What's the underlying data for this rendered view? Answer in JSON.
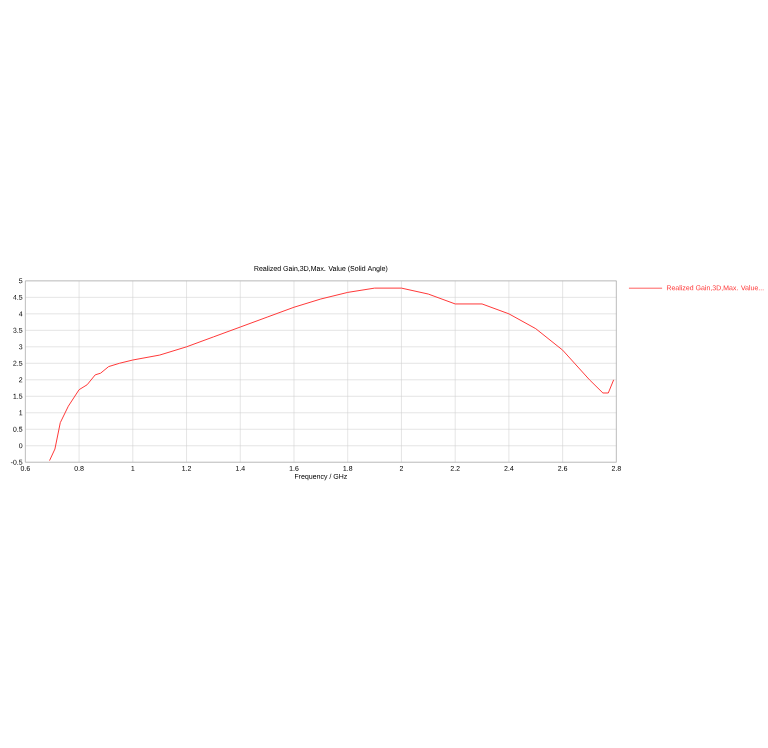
{
  "chart_data": {
    "type": "line",
    "title": "Realized Gain,3D,Max. Value (Solid Angle)",
    "xlabel": "Frequency / GHz",
    "xlim": [
      0.6,
      2.8
    ],
    "xticks": [
      0.6,
      0.8,
      1,
      1.2,
      1.4,
      1.6,
      1.8,
      2,
      2.2,
      2.4,
      2.6,
      2.8
    ],
    "ylim": [
      -0.5,
      5
    ],
    "yticks": [
      -0.5,
      0,
      0.5,
      1,
      1.5,
      2,
      2.5,
      3,
      3.5,
      4,
      4.5,
      5
    ],
    "grid": true,
    "legend": "top right",
    "marker": "none",
    "line_style": "solid",
    "series": [
      {
        "name": "Realized Gain,3D,Max. Value...",
        "color": "#ff3333",
        "x": [
          0.69,
          0.71,
          0.73,
          0.76,
          0.8,
          0.83,
          0.86,
          0.88,
          0.91,
          0.95,
          1.0,
          1.1,
          1.2,
          1.3,
          1.4,
          1.5,
          1.6,
          1.7,
          1.8,
          1.9,
          2.0,
          2.1,
          2.2,
          2.3,
          2.4,
          2.5,
          2.6,
          2.7,
          2.75,
          2.77,
          2.79
        ],
        "values": [
          -0.45,
          -0.1,
          0.7,
          1.2,
          1.7,
          1.85,
          2.15,
          2.2,
          2.4,
          2.5,
          2.6,
          2.75,
          3.0,
          3.3,
          3.6,
          3.9,
          4.2,
          4.45,
          4.65,
          4.78,
          4.78,
          4.6,
          4.3,
          4.3,
          4.0,
          3.55,
          2.9,
          2.0,
          1.6,
          1.6,
          2.0
        ]
      }
    ]
  }
}
